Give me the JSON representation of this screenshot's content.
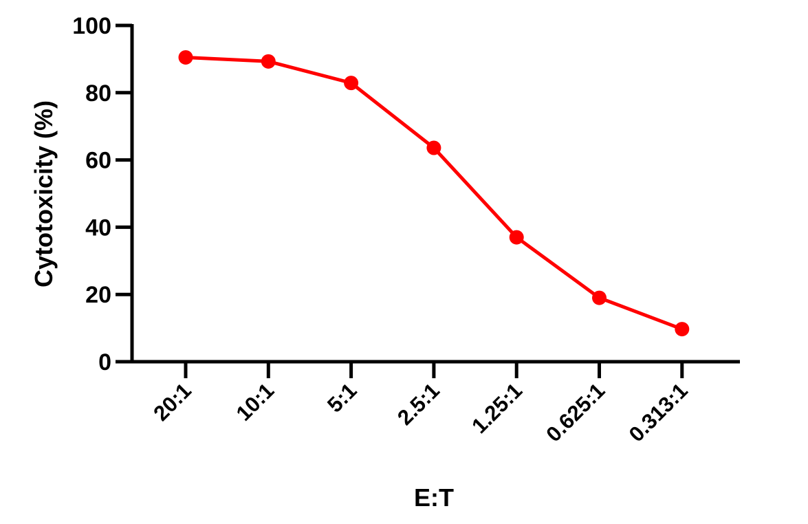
{
  "chart_data": {
    "type": "line",
    "categories": [
      "20:1",
      "10:1",
      "5:1",
      "2.5:1",
      "1.25:1",
      "0.625:1",
      "0.313:1"
    ],
    "series": [
      {
        "values": [
          90.5,
          89.3,
          82.9,
          63.6,
          37.0,
          19.0,
          9.7
        ],
        "color": "#ff0000"
      }
    ],
    "xlabel": "E:T",
    "ylabel": "Cytotoxicity (%)",
    "ylim": [
      0,
      100
    ],
    "yticks": [
      0,
      20,
      40,
      60,
      80,
      100
    ],
    "grid": false,
    "legend": "none"
  }
}
